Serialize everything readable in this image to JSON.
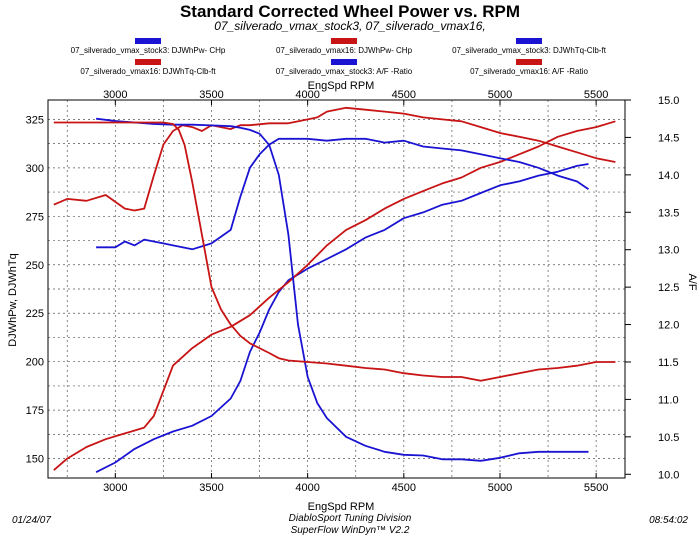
{
  "header": {
    "title": "Standard Corrected Wheel Power vs. RPM",
    "subtitle": "07_silverado_vmax_stock3, 07_silverado_vmax16,"
  },
  "footer": {
    "date": "01/24/07",
    "company": "DiabloSport Tuning Division",
    "software": "SuperFlow WinDyn™ V2.2",
    "time": "08:54:02"
  },
  "colors": {
    "blue": "#1a14d2",
    "red": "#c81414"
  },
  "chart_data": {
    "type": "line",
    "xlabel_top": "EngSpd  RPM",
    "xlabel_bottom": "EngSpd  RPM",
    "ylabel_left": "DJWhPw, DJWhTq",
    "ylabel_right": "A/F",
    "xlim": [
      2650,
      5650
    ],
    "ylim_left": [
      140,
      335
    ],
    "ylim_right": [
      9.95,
      15.0
    ],
    "x_ticks": [
      "3000",
      "3500",
      "4000",
      "4500",
      "5000",
      "5500"
    ],
    "y_ticks_left": [
      "150",
      "175",
      "200",
      "225",
      "250",
      "275",
      "300",
      "325"
    ],
    "y_ticks_right": [
      "10.0",
      "10.5",
      "11.0",
      "11.5",
      "12.0",
      "12.5",
      "13.0",
      "13.5",
      "14.0",
      "14.5",
      "15.0"
    ],
    "grid": true,
    "series": [
      {
        "name": "07_silverado_vmax_stock3: DJWhPw- CHp",
        "color": "blue",
        "axis": "left",
        "x": [
          2900,
          3000,
          3100,
          3200,
          3300,
          3400,
          3500,
          3600,
          3650,
          3700,
          3750,
          3800,
          3850,
          3900,
          4000,
          4100,
          4200,
          4300,
          4400,
          4500,
          4600,
          4700,
          4800,
          4900,
          5000,
          5100,
          5200,
          5300,
          5400,
          5460
        ],
        "values": [
          143,
          148,
          155,
          160,
          164,
          167,
          172,
          181,
          190,
          205,
          215,
          227,
          236,
          242,
          248,
          253,
          258,
          264,
          268,
          274,
          277,
          281,
          283,
          287,
          291,
          293,
          296,
          298,
          301,
          302
        ]
      },
      {
        "name": "07_silverado_vmax16: DJWhPw- CHp",
        "color": "red",
        "axis": "left",
        "x": [
          2680,
          2750,
          2850,
          2950,
          3050,
          3150,
          3200,
          3250,
          3300,
          3400,
          3500,
          3600,
          3700,
          3800,
          3900,
          4000,
          4100,
          4200,
          4300,
          4400,
          4500,
          4600,
          4700,
          4800,
          4900,
          5000,
          5100,
          5200,
          5300,
          5400,
          5500,
          5600
        ],
        "values": [
          144,
          150,
          156,
          160,
          163,
          166,
          172,
          185,
          198,
          207,
          214,
          218,
          224,
          233,
          241,
          250,
          260,
          268,
          273,
          279,
          284,
          288,
          292,
          295,
          300,
          303,
          307,
          311,
          316,
          319,
          321,
          324
        ]
      },
      {
        "name": "07_silverado_vmax_stock3: DJWhTq-Clb-ft",
        "color": "blue",
        "axis": "left",
        "x": [
          2900,
          3000,
          3050,
          3100,
          3150,
          3200,
          3250,
          3300,
          3400,
          3500,
          3600,
          3650,
          3700,
          3750,
          3800,
          3850,
          3900,
          4000,
          4100,
          4200,
          4300,
          4400,
          4500,
          4600,
          4700,
          4800,
          4900,
          5000,
          5100,
          5200,
          5300,
          5400,
          5460
        ],
        "values": [
          259,
          259,
          262,
          260,
          263,
          262,
          261,
          260,
          258,
          261,
          268,
          285,
          300,
          307,
          312,
          315,
          315,
          315,
          314,
          315,
          315,
          313,
          314,
          311,
          310,
          309,
          307,
          305,
          303,
          300,
          296,
          293,
          289
        ]
      },
      {
        "name": "07_silverado_vmax16: DJWhTq-Clb-ft",
        "color": "red",
        "axis": "left",
        "x": [
          2680,
          2750,
          2850,
          2950,
          3050,
          3100,
          3150,
          3200,
          3250,
          3300,
          3350,
          3400,
          3450,
          3500,
          3600,
          3650,
          3700,
          3800,
          3900,
          4000,
          4050,
          4100,
          4200,
          4300,
          4400,
          4500,
          4600,
          4700,
          4800,
          4900,
          5000,
          5100,
          5200,
          5300,
          5400,
          5500,
          5600
        ],
        "values": [
          281,
          284,
          283,
          286,
          279,
          278,
          279,
          296,
          312,
          319,
          322,
          321,
          319,
          322,
          320,
          322,
          322,
          323,
          323,
          325,
          326,
          329,
          331,
          330,
          329,
          328,
          326,
          325,
          324,
          321,
          318,
          316,
          314,
          311,
          308,
          305,
          303
        ]
      },
      {
        "name": "07_silverado_vmax_stock3: A/F  -Ratio",
        "color": "blue",
        "axis": "right",
        "x": [
          2900,
          3000,
          3100,
          3200,
          3300,
          3400,
          3500,
          3600,
          3650,
          3700,
          3750,
          3800,
          3850,
          3900,
          3950,
          4000,
          4050,
          4100,
          4200,
          4300,
          4400,
          4500,
          4600,
          4700,
          4800,
          4900,
          5000,
          5100,
          5200,
          5300,
          5400,
          5460
        ],
        "values": [
          14.75,
          14.72,
          14.7,
          14.68,
          14.67,
          14.67,
          14.66,
          14.65,
          14.63,
          14.6,
          14.55,
          14.4,
          14.0,
          13.2,
          12.0,
          11.3,
          10.95,
          10.75,
          10.5,
          10.38,
          10.3,
          10.26,
          10.25,
          10.2,
          10.2,
          10.18,
          10.22,
          10.28,
          10.3,
          10.3,
          10.3,
          10.3
        ]
      },
      {
        "name": "07_silverado_vmax16: A/F  -Ratio",
        "color": "red",
        "axis": "right",
        "x": [
          2680,
          2750,
          2850,
          2950,
          3050,
          3150,
          3250,
          3300,
          3330,
          3360,
          3400,
          3450,
          3500,
          3550,
          3600,
          3650,
          3700,
          3800,
          3850,
          3900,
          4000,
          4100,
          4200,
          4300,
          4400,
          4500,
          4600,
          4700,
          4800,
          4900,
          5000,
          5100,
          5200,
          5300,
          5400,
          5500,
          5600
        ],
        "values": [
          14.7,
          14.7,
          14.7,
          14.7,
          14.7,
          14.7,
          14.7,
          14.68,
          14.6,
          14.4,
          13.9,
          13.2,
          12.5,
          12.2,
          12.0,
          11.85,
          11.75,
          11.62,
          11.55,
          11.52,
          11.5,
          11.48,
          11.45,
          11.42,
          11.4,
          11.35,
          11.32,
          11.3,
          11.3,
          11.25,
          11.3,
          11.35,
          11.4,
          11.42,
          11.45,
          11.5,
          11.5
        ]
      }
    ]
  }
}
